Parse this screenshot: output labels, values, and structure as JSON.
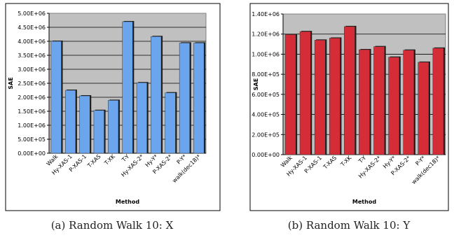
{
  "chart_data": [
    {
      "type": "bar",
      "caption": "(a) Random Walk 10: X",
      "xlabel": "Method",
      "ylabel": "SAE",
      "ylim": [
        0,
        5000000
      ],
      "y_ticks": [
        0,
        500000,
        1000000,
        1500000,
        2000000,
        2500000,
        3000000,
        3500000,
        4000000,
        4500000,
        5000000
      ],
      "y_tick_labels": [
        "0.00E+00",
        "5.00E+05",
        "1.00E+06",
        "1.50E+06",
        "2.00E+06",
        "2.50E+06",
        "3.00E+06",
        "3.50E+06",
        "4.00E+06",
        "4.50E+06",
        "5.00E+06"
      ],
      "categories": [
        "Walk",
        "Hy-XAS-1",
        "P-XAS-1",
        "T-XAS",
        "T-XK",
        "T-Y",
        "Hy-XAS-2*",
        "Hy-Y*",
        "P-XAS-2*",
        "P-Y*",
        "walk(dec18)*"
      ],
      "values": [
        4000000,
        2250000,
        2050000,
        1530000,
        1890000,
        4700000,
        2520000,
        4170000,
        2160000,
        3940000,
        3940000
      ],
      "bar_color": "#6aa5ee",
      "plot_background": "#c0c0c0",
      "grid": true,
      "legend": "none"
    },
    {
      "type": "bar",
      "caption": "(b) Random Walk 10: Y",
      "xlabel": "Method",
      "ylabel": "SAE",
      "ylim": [
        0,
        1400000
      ],
      "y_ticks": [
        0,
        200000,
        400000,
        600000,
        800000,
        1000000,
        1200000,
        1400000
      ],
      "y_tick_labels": [
        "0.00E+00",
        "2.00E+05",
        "4.00E+05",
        "6.00E+05",
        "8.00E+05",
        "1.00E+06",
        "1.20E+06",
        "1.40E+06"
      ],
      "categories": [
        "Walk",
        "Hy-XAS-1",
        "P-XAS-1",
        "T-XAS",
        "T-XK",
        "T-Y",
        "Hy-XAS-2*",
        "Hy-Y*",
        "P-XAS-2*",
        "P-Y*",
        "walk(dec18)*"
      ],
      "values": [
        1195000,
        1225000,
        1140000,
        1160000,
        1275000,
        1045000,
        1075000,
        970000,
        1040000,
        920000,
        1060000
      ],
      "bar_color": "#d42d37",
      "plot_background": "#c0c0c0",
      "grid": true,
      "legend": "none"
    }
  ]
}
